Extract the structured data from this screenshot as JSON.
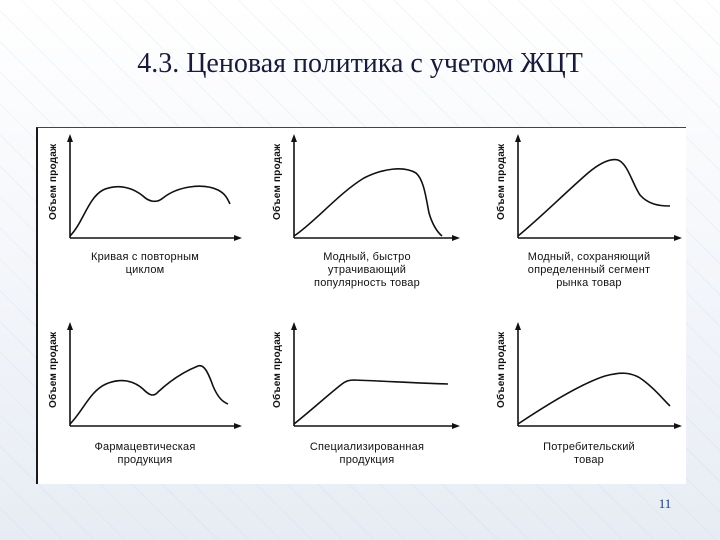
{
  "title": "4.3. Ценовая политика с учетом ЖЦТ",
  "page_number": "11",
  "y_axis_label": "Объем продаж",
  "charts": [
    {
      "id": "repeat-cycle",
      "caption": "Кривая с повторным\nциклом"
    },
    {
      "id": "fad",
      "caption": "Модный, быстро\nутрачивающий\nпопулярность товар"
    },
    {
      "id": "fashion-segment",
      "caption": "Модный, сохраняющий\nопределенный сегмент\nрынка товар"
    },
    {
      "id": "pharma",
      "caption": "Фармацевтическая\nпродукция"
    },
    {
      "id": "specialized",
      "caption": "Специализированная\nпродукция"
    },
    {
      "id": "consumer",
      "caption": "Потребительский\nтовар"
    }
  ],
  "colors": {
    "title": "#1a1a3a",
    "curve": "#111111",
    "page_number": "#1a3a7a"
  }
}
